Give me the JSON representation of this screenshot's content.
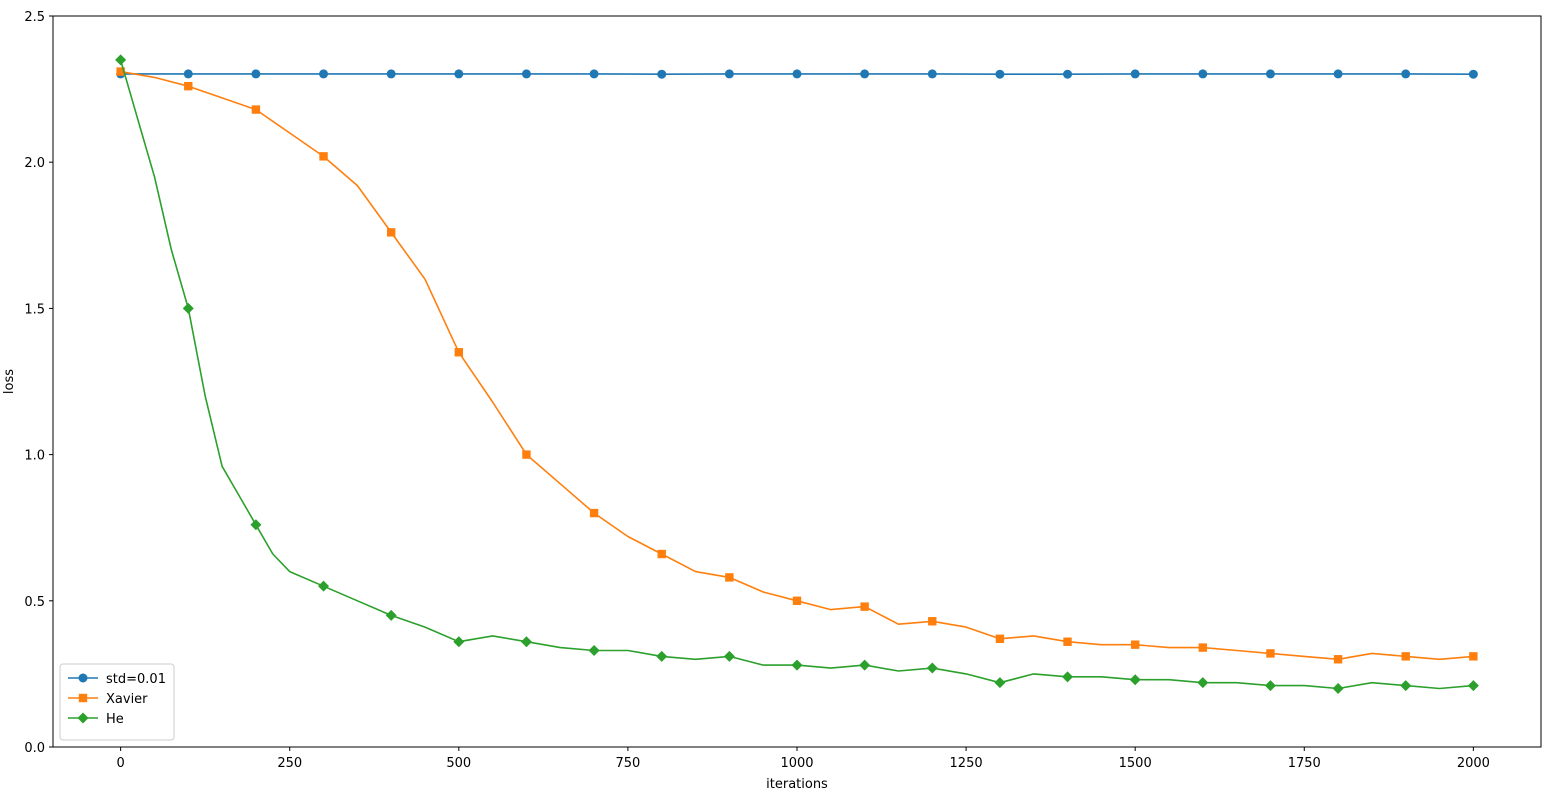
{
  "chart_data": {
    "type": "line",
    "title": "",
    "xlabel": "iterations",
    "ylabel": "loss",
    "xlim": [
      -100,
      2100
    ],
    "ylim": [
      0.0,
      2.5
    ],
    "xticks": [
      0,
      250,
      500,
      750,
      1000,
      1250,
      1500,
      1750,
      2000
    ],
    "xtick_labels": [
      "0",
      "250",
      "500",
      "750",
      "1000",
      "1250",
      "1500",
      "1750",
      "2000"
    ],
    "yticks": [
      0.0,
      0.5,
      1.0,
      1.5,
      2.0,
      2.5
    ],
    "ytick_labels": [
      "0.0",
      "0.5",
      "1.0",
      "1.5",
      "2.0",
      "2.5"
    ],
    "grid": false,
    "legend_position": "lower-left",
    "marker_every": 100,
    "series": [
      {
        "name": "std=0.01",
        "color": "#1f77b4",
        "marker": "circle",
        "x": [
          0,
          100,
          200,
          300,
          400,
          500,
          600,
          700,
          800,
          900,
          1000,
          1100,
          1200,
          1300,
          1400,
          1500,
          1600,
          1700,
          1800,
          1900,
          2000
        ],
        "values": [
          2.302,
          2.302,
          2.302,
          2.302,
          2.302,
          2.302,
          2.302,
          2.302,
          2.301,
          2.302,
          2.302,
          2.302,
          2.302,
          2.301,
          2.301,
          2.302,
          2.302,
          2.302,
          2.302,
          2.302,
          2.301
        ]
      },
      {
        "name": "Xavier",
        "color": "#ff7f0e",
        "marker": "square",
        "x": [
          0,
          50,
          100,
          150,
          200,
          250,
          300,
          350,
          400,
          450,
          500,
          550,
          600,
          650,
          700,
          750,
          800,
          850,
          900,
          950,
          1000,
          1050,
          1100,
          1150,
          1200,
          1250,
          1300,
          1350,
          1400,
          1450,
          1500,
          1550,
          1600,
          1650,
          1700,
          1750,
          1800,
          1850,
          1900,
          1950,
          2000
        ],
        "values": [
          2.31,
          2.29,
          2.26,
          2.22,
          2.18,
          2.1,
          2.02,
          1.92,
          1.76,
          1.6,
          1.35,
          1.18,
          1.0,
          0.9,
          0.8,
          0.72,
          0.66,
          0.6,
          0.58,
          0.53,
          0.5,
          0.47,
          0.48,
          0.42,
          0.43,
          0.41,
          0.37,
          0.38,
          0.36,
          0.35,
          0.35,
          0.34,
          0.34,
          0.33,
          0.32,
          0.31,
          0.3,
          0.32,
          0.31,
          0.3,
          0.31
        ]
      },
      {
        "name": "He",
        "color": "#2ca02c",
        "marker": "diamond",
        "x": [
          0,
          25,
          50,
          75,
          100,
          125,
          150,
          175,
          200,
          225,
          250,
          300,
          350,
          400,
          450,
          500,
          550,
          600,
          650,
          700,
          750,
          800,
          850,
          900,
          950,
          1000,
          1050,
          1100,
          1150,
          1200,
          1250,
          1300,
          1350,
          1400,
          1450,
          1500,
          1550,
          1600,
          1650,
          1700,
          1750,
          1800,
          1850,
          1900,
          1950,
          2000
        ],
        "values": [
          2.35,
          2.15,
          1.95,
          1.7,
          1.5,
          1.2,
          0.96,
          0.86,
          0.76,
          0.66,
          0.6,
          0.55,
          0.5,
          0.45,
          0.41,
          0.36,
          0.38,
          0.36,
          0.34,
          0.33,
          0.33,
          0.31,
          0.3,
          0.31,
          0.28,
          0.28,
          0.27,
          0.28,
          0.26,
          0.27,
          0.25,
          0.22,
          0.25,
          0.24,
          0.24,
          0.23,
          0.23,
          0.22,
          0.22,
          0.21,
          0.21,
          0.2,
          0.22,
          0.21,
          0.2,
          0.21
        ]
      }
    ]
  }
}
